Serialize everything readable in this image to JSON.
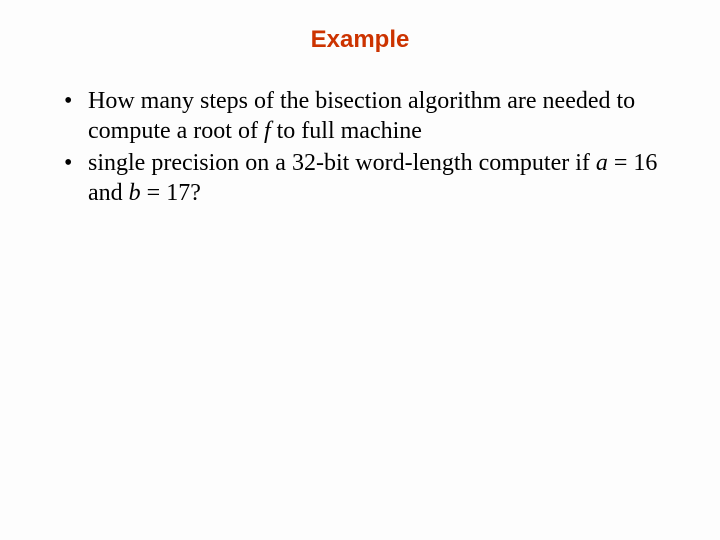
{
  "title": "Example",
  "bullets": [
    {
      "pre": "How many steps of the bisection algorithm are needed to compute a root of ",
      "f": "f",
      "post": " to full machine"
    },
    {
      "pre": "single precision on a 32-bit word-length computer if ",
      "a": "a",
      "mid1": " = 16 and ",
      "b": "b",
      "mid2": " = 17?"
    }
  ],
  "colors": {
    "title": "#cc3300",
    "text": "#000000",
    "background": "#fdfdfd"
  },
  "fonts": {
    "title_family": "Arial",
    "title_size_pt": 18,
    "body_family": "Times New Roman",
    "body_size_pt": 18
  }
}
